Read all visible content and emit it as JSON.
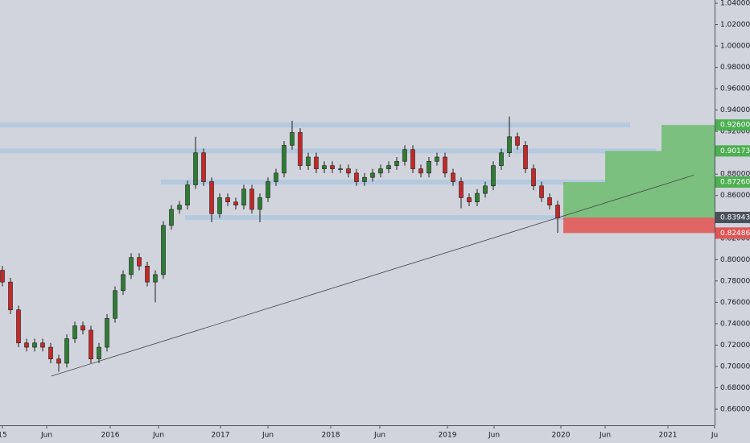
{
  "chart_data": {
    "type": "candlestick",
    "up_color": "#2e7d32",
    "down_color": "#c62828",
    "open": [
      0.79,
      0.779,
      0.753,
      0.722,
      0.718,
      0.722,
      0.718,
      0.707,
      0.703,
      0.726,
      0.738,
      0.734,
      0.707,
      0.718,
      0.745,
      0.771,
      0.786,
      0.802,
      0.794,
      0.779,
      0.786,
      0.832,
      0.847,
      0.851,
      0.87,
      0.9,
      0.873,
      0.843,
      0.858,
      0.854,
      0.851,
      0.866,
      0.847,
      0.858,
      0.873,
      0.881,
      0.907,
      0.919,
      0.888,
      0.896,
      0.885,
      0.888,
      0.885,
      0.885,
      0.881,
      0.873,
      0.877,
      0.881,
      0.885,
      0.888,
      0.892,
      0.903,
      0.885,
      0.881,
      0.892,
      0.896,
      0.881,
      0.873,
      0.858,
      0.854,
      0.862,
      0.869,
      0.888,
      0.9,
      0.915,
      0.907,
      0.885,
      0.869,
      0.858,
      0.851
    ],
    "high": [
      0.794,
      0.783,
      0.757,
      0.726,
      0.726,
      0.726,
      0.722,
      0.711,
      0.73,
      0.742,
      0.742,
      0.738,
      0.722,
      0.749,
      0.775,
      0.79,
      0.806,
      0.806,
      0.798,
      0.79,
      0.836,
      0.851,
      0.855,
      0.874,
      0.915,
      0.904,
      0.877,
      0.862,
      0.862,
      0.858,
      0.87,
      0.87,
      0.862,
      0.877,
      0.885,
      0.911,
      0.93,
      0.923,
      0.9,
      0.9,
      0.892,
      0.892,
      0.889,
      0.889,
      0.885,
      0.881,
      0.885,
      0.889,
      0.892,
      0.896,
      0.907,
      0.907,
      0.889,
      0.896,
      0.9,
      0.9,
      0.885,
      0.877,
      0.862,
      0.866,
      0.873,
      0.892,
      0.904,
      0.934,
      0.919,
      0.911,
      0.889,
      0.873,
      0.862,
      0.855
    ],
    "low": [
      0.775,
      0.749,
      0.718,
      0.714,
      0.714,
      0.714,
      0.703,
      0.695,
      0.699,
      0.722,
      0.73,
      0.703,
      0.703,
      0.714,
      0.741,
      0.767,
      0.782,
      0.79,
      0.775,
      0.76,
      0.782,
      0.828,
      0.843,
      0.847,
      0.866,
      0.869,
      0.835,
      0.839,
      0.85,
      0.847,
      0.847,
      0.843,
      0.835,
      0.854,
      0.869,
      0.877,
      0.903,
      0.884,
      0.884,
      0.881,
      0.881,
      0.881,
      0.881,
      0.877,
      0.869,
      0.869,
      0.873,
      0.877,
      0.881,
      0.884,
      0.888,
      0.881,
      0.877,
      0.877,
      0.888,
      0.877,
      0.869,
      0.848,
      0.85,
      0.85,
      0.858,
      0.865,
      0.884,
      0.896,
      0.903,
      0.881,
      0.865,
      0.854,
      0.847,
      0.825
    ],
    "close": [
      0.779,
      0.753,
      0.722,
      0.718,
      0.722,
      0.718,
      0.707,
      0.703,
      0.726,
      0.738,
      0.734,
      0.707,
      0.718,
      0.745,
      0.771,
      0.786,
      0.802,
      0.794,
      0.779,
      0.786,
      0.832,
      0.847,
      0.851,
      0.87,
      0.9,
      0.873,
      0.843,
      0.858,
      0.854,
      0.851,
      0.866,
      0.847,
      0.858,
      0.873,
      0.881,
      0.907,
      0.919,
      0.888,
      0.896,
      0.885,
      0.888,
      0.885,
      0.885,
      0.881,
      0.873,
      0.877,
      0.881,
      0.885,
      0.888,
      0.892,
      0.903,
      0.885,
      0.881,
      0.892,
      0.896,
      0.881,
      0.873,
      0.858,
      0.854,
      0.862,
      0.869,
      0.888,
      0.9,
      0.915,
      0.907,
      0.885,
      0.869,
      0.858,
      0.851,
      0.839
    ],
    "ylim": [
      0.66,
      1.04
    ],
    "yticks": [
      {
        "value": 0.66,
        "label": "0.66000"
      },
      {
        "value": 0.68,
        "label": "0.68000"
      },
      {
        "value": 0.7,
        "label": "0.70000"
      },
      {
        "value": 0.72,
        "label": "0.72000"
      },
      {
        "value": 0.74,
        "label": "0.74000"
      },
      {
        "value": 0.76,
        "label": "0.76000"
      },
      {
        "value": 0.78,
        "label": "0.78000"
      },
      {
        "value": 0.8,
        "label": "0.80000"
      },
      {
        "value": 0.82,
        "label": "0.82000"
      },
      {
        "value": 0.84,
        "label": "0.84000"
      },
      {
        "value": 0.86,
        "label": "0.86000"
      },
      {
        "value": 0.88,
        "label": "0.88000"
      },
      {
        "value": 0.9,
        "label": "0.90000"
      },
      {
        "value": 0.92,
        "label": "0.92000"
      },
      {
        "value": 0.94,
        "label": "0.94000"
      },
      {
        "value": 0.96,
        "label": "0.96000"
      },
      {
        "value": 0.98,
        "label": "0.98000"
      },
      {
        "value": 1.0,
        "label": "1.00000"
      },
      {
        "value": 1.02,
        "label": "1.02000"
      },
      {
        "value": 1.04,
        "label": "1.04000"
      }
    ],
    "xlim": [
      -0.3,
      88.5
    ],
    "xticks": [
      {
        "value": 0,
        "label": "15"
      },
      {
        "value": 5.5,
        "label": "Jun"
      },
      {
        "value": 13.4,
        "label": "2016"
      },
      {
        "value": 19.4,
        "label": "Jun"
      },
      {
        "value": 27.1,
        "label": "2017"
      },
      {
        "value": 33,
        "label": "Jun"
      },
      {
        "value": 40.8,
        "label": "2018"
      },
      {
        "value": 46.9,
        "label": "Jun"
      },
      {
        "value": 55.3,
        "label": "2019"
      },
      {
        "value": 61.1,
        "label": "Jun"
      },
      {
        "value": 69.4,
        "label": "2020"
      },
      {
        "value": 74.9,
        "label": "Jun"
      },
      {
        "value": 82.7,
        "label": "2021"
      },
      {
        "value": 88.5,
        "label": "Ju"
      }
    ],
    "levels": [
      {
        "value": 0.926,
        "from": -0.3,
        "to": 78.0
      },
      {
        "value": 0.9017,
        "from": -0.3,
        "to": 81.2
      },
      {
        "value": 0.8726,
        "from": 19.7,
        "to": 88.5
      },
      {
        "value": 0.8394,
        "from": 22.7,
        "to": 69.7
      }
    ],
    "level_color": "#a9c4e0",
    "trendline": {
      "x": [
        6.1,
        85.9
      ],
      "y": [
        0.691,
        0.879
      ],
      "color": "#444444"
    },
    "position": {
      "entry": 0.83943,
      "stop": 0.82486,
      "targets": [
        0.8726,
        0.90173,
        0.926
      ],
      "x": [
        69.7,
        74.9,
        81.9,
        88.5
      ],
      "profit_color": "#7cc07f",
      "loss_color": "#e06666"
    },
    "price_tags": [
      {
        "value": 0.926,
        "label": "0.92600",
        "color": "#4caf50"
      },
      {
        "value": 0.90173,
        "label": "0.90173",
        "color": "#4caf50"
      },
      {
        "value": 0.8726,
        "label": "0.87260",
        "color": "#4caf50"
      },
      {
        "value": 0.83943,
        "label": "0.83943",
        "color": "#4a4f5c"
      },
      {
        "value": 0.82486,
        "label": "0.82486",
        "color": "#e05555"
      }
    ]
  }
}
